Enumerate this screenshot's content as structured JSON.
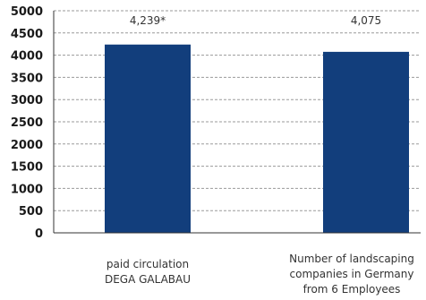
{
  "chart_data": {
    "type": "bar",
    "categories": [
      [
        "paid circulation",
        "DEGA GALABAU"
      ],
      [
        "Number of landscaping",
        "companies in Germany",
        "from 6 Employees"
      ]
    ],
    "values": [
      4239,
      4075
    ],
    "data_labels": [
      "4,239*",
      "4,075"
    ],
    "yticks": [
      "0",
      "500",
      "1000",
      "1500",
      "2000",
      "2500",
      "3000",
      "3500",
      "4000",
      "4500",
      "5000"
    ],
    "ylim": [
      0,
      5000
    ],
    "grid": true,
    "title": "",
    "xlabel": "",
    "ylabel": ""
  },
  "colors": {
    "bar": "#123e7c",
    "grid": "#9a9a9a",
    "axis": "#333333"
  }
}
